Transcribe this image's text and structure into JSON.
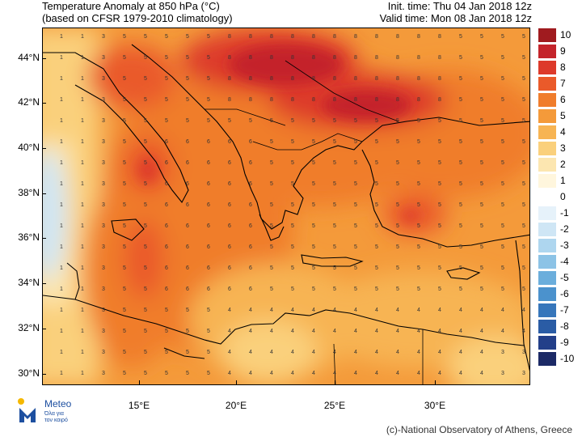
{
  "header": {
    "title_line1": "Temperature Anomaly at 850 hPa (°C)",
    "title_line2": "(based on CFSR 1979-2010 climatology)",
    "init_time": "Init. time: Thu 04 Jan 2018 12z",
    "valid_time": "Valid time: Mon 08 Jan 2018 12z"
  },
  "map": {
    "lat_labels": [
      "44°N",
      "42°N",
      "40°N",
      "38°N",
      "36°N",
      "34°N",
      "32°N",
      "30°N"
    ],
    "lon_labels": [
      "15°E",
      "20°E",
      "25°E",
      "30°E"
    ]
  },
  "colorbar": {
    "labels": [
      "10",
      "9",
      "8",
      "7",
      "6",
      "5",
      "4",
      "3",
      "2",
      "1",
      "0",
      "-1",
      "-2",
      "-3",
      "-4",
      "-5",
      "-6",
      "-7",
      "-8",
      "-9",
      "-10"
    ],
    "colors": [
      "#a01b1f",
      "#c4242b",
      "#dd3a2b",
      "#ea5a2a",
      "#f07d2c",
      "#f49a3a",
      "#f7b453",
      "#fad07c",
      "#fce6b0",
      "#fff6dd",
      "#ffffff",
      "#e6f2fa",
      "#cfe6f5",
      "#aed6ef",
      "#8cc3e6",
      "#6baedc",
      "#4b92cd",
      "#3676bb",
      "#2a5ca5",
      "#233f89",
      "#1c2a66"
    ]
  },
  "logo": {
    "name": "Meteo",
    "tagline_1": "Όλα για",
    "tagline_2": "τον καιρό"
  },
  "credit": "(c)-National Observatory of Athens, Greece"
}
